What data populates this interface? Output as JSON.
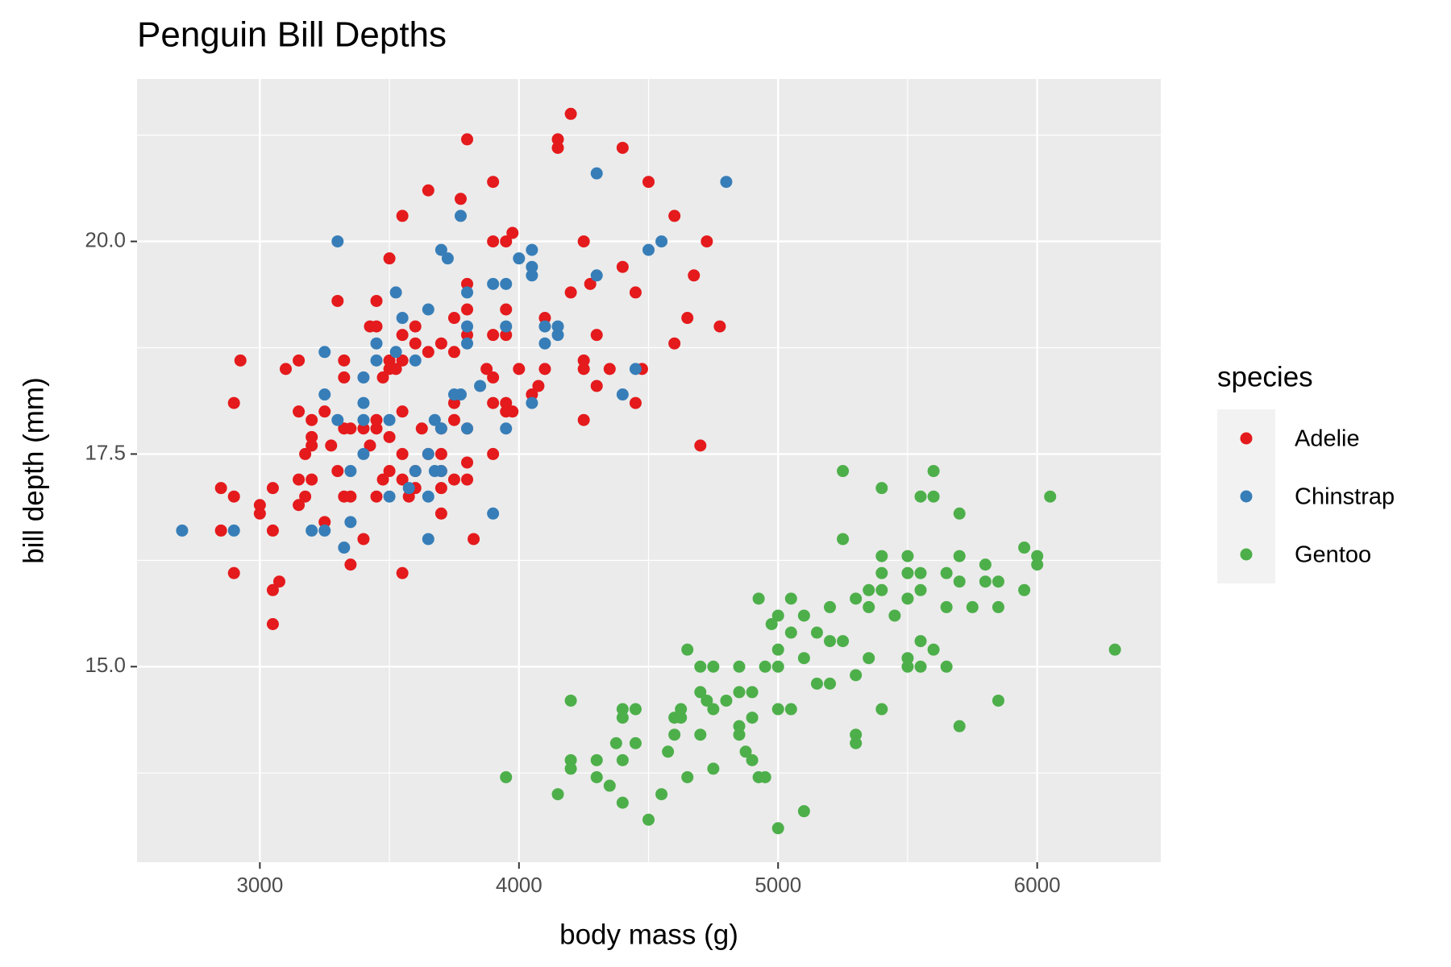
{
  "chart_data": {
    "type": "scatter",
    "title": "Penguin Bill Depths",
    "x_label": "body mass (g)",
    "y_label": "bill depth (mm)",
    "legend_title": "species",
    "legend_position": "right",
    "grid": true,
    "xlim": [
      2526,
      6477
    ],
    "ylim": [
      12.7,
      21.91
    ],
    "xticks": [
      3000,
      4000,
      5000,
      6000
    ],
    "yticks": [
      {
        "value": 15,
        "label": "15.0"
      },
      17.5,
      {
        "value": 20,
        "label": "20.0"
      }
    ],
    "x_minor_breaks": [
      3500,
      4500,
      5500
    ],
    "y_minor_breaks": [
      13.75,
      16.25,
      18.75,
      21.25
    ],
    "series": [
      {
        "name": "Adelie",
        "color": "#E41A1C",
        "x": [
          4200,
          4150,
          4150,
          3800,
          4400,
          3900,
          4500,
          3650,
          3775,
          3550,
          4600,
          3975,
          3900,
          3950,
          4250,
          4725,
          3500,
          4400,
          4675,
          4275,
          4200,
          4450,
          3800,
          3300,
          3450,
          3800,
          3950,
          4650,
          4100,
          3750,
          4775,
          3425,
          3450,
          3600,
          3950,
          3900,
          3550,
          4300,
          3800,
          4600,
          3600,
          3750,
          3650,
          3700,
          2925,
          3150,
          3325,
          4250,
          3500,
          3525,
          3550,
          3500,
          3100,
          3875,
          4000,
          4100,
          4250,
          4350,
          4475,
          3900,
          3325,
          3475,
          4075,
          4300,
          4050,
          2900,
          3750,
          3900,
          4450,
          3950,
          3975,
          3950,
          3150,
          3250,
          3550,
          4250,
          3200,
          3325,
          3350,
          3400,
          3450,
          3450,
          3500,
          3625,
          3700,
          3750,
          3800,
          3200,
          3200,
          3175,
          3275,
          3425,
          4700,
          3550,
          3650,
          3700,
          3900,
          3800,
          3300,
          3500,
          3600,
          3700,
          3150,
          3200,
          3550,
          3750,
          3800,
          3475,
          2850,
          3050,
          3600,
          2900,
          3175,
          3325,
          3350,
          3450,
          3575,
          3700,
          3000,
          3150,
          3000,
          3700,
          3250,
          2850,
          3050,
          3400,
          3825,
          3350,
          2900,
          3550,
          3075,
          3050,
          3050
        ],
        "y": [
          21.5,
          21.2,
          21.1,
          21.2,
          21.1,
          20.7,
          20.7,
          20.6,
          20.5,
          20.3,
          20.3,
          20.1,
          20.0,
          20.0,
          20.0,
          20.0,
          19.8,
          19.7,
          19.6,
          19.5,
          19.4,
          19.4,
          19.5,
          19.3,
          19.3,
          19.2,
          19.2,
          19.1,
          19.1,
          19.1,
          19.0,
          19.0,
          19.0,
          19.0,
          18.9,
          18.9,
          18.9,
          18.9,
          18.9,
          18.8,
          18.8,
          18.7,
          18.7,
          18.8,
          18.6,
          18.6,
          18.6,
          18.6,
          18.6,
          18.5,
          18.6,
          18.5,
          18.5,
          18.5,
          18.5,
          18.5,
          18.5,
          18.5,
          18.5,
          18.4,
          18.4,
          18.4,
          18.3,
          18.3,
          18.2,
          18.1,
          18.1,
          18.1,
          18.1,
          18.0,
          18.0,
          18.1,
          18.0,
          18.0,
          18.0,
          17.9,
          17.9,
          17.8,
          17.8,
          17.8,
          17.9,
          17.8,
          17.7,
          17.8,
          17.8,
          17.9,
          17.8,
          17.7,
          17.6,
          17.5,
          17.6,
          17.6,
          17.6,
          17.5,
          17.5,
          17.5,
          17.5,
          17.4,
          17.3,
          17.3,
          17.3,
          17.3,
          17.2,
          17.2,
          17.2,
          17.2,
          17.2,
          17.2,
          17.1,
          17.1,
          17.1,
          17.0,
          17.0,
          17.0,
          17.0,
          17.0,
          17.0,
          17.1,
          16.9,
          16.9,
          16.8,
          16.8,
          16.7,
          16.6,
          16.6,
          16.5,
          16.5,
          16.2,
          16.1,
          16.1,
          16.0,
          15.9,
          15.5
        ]
      },
      {
        "name": "Chinstrap",
        "color": "#377EB8",
        "x": [
          2700,
          2900,
          4300,
          4800,
          3775,
          3300,
          4550,
          4500,
          3700,
          3725,
          4050,
          4000,
          4050,
          4050,
          4300,
          3900,
          3950,
          3800,
          3525,
          3650,
          3550,
          3950,
          3800,
          4100,
          4150,
          4150,
          3800,
          3450,
          4100,
          3250,
          3525,
          3600,
          3450,
          4450,
          3400,
          3850,
          3250,
          3750,
          3775,
          4400,
          3400,
          4050,
          3300,
          3400,
          3500,
          3675,
          3700,
          3800,
          3950,
          3400,
          3650,
          3350,
          3600,
          3675,
          3700,
          3575,
          3500,
          3650,
          3900,
          3350,
          3200,
          3250,
          3650,
          3325
        ],
        "y": [
          16.6,
          16.6,
          20.8,
          20.7,
          20.3,
          20.0,
          20.0,
          19.9,
          19.9,
          19.8,
          19.9,
          19.8,
          19.7,
          19.6,
          19.6,
          19.5,
          19.5,
          19.4,
          19.4,
          19.2,
          19.1,
          19.0,
          19.0,
          19.0,
          19.0,
          18.9,
          18.8,
          18.8,
          18.8,
          18.7,
          18.7,
          18.6,
          18.6,
          18.5,
          18.4,
          18.3,
          18.2,
          18.2,
          18.2,
          18.2,
          18.1,
          18.1,
          17.9,
          17.9,
          17.9,
          17.9,
          17.8,
          17.8,
          17.8,
          17.5,
          17.5,
          17.3,
          17.3,
          17.3,
          17.3,
          17.1,
          17.0,
          17.0,
          16.8,
          16.7,
          16.6,
          16.6,
          16.5,
          16.4
        ]
      },
      {
        "name": "Gentoo",
        "color": "#4DAF4A",
        "x": [
          5250,
          5600,
          5400,
          5550,
          5600,
          6050,
          5700,
          5250,
          5950,
          5400,
          5500,
          5700,
          6000,
          6000,
          5800,
          5400,
          5500,
          5550,
          5650,
          5700,
          5800,
          5850,
          5350,
          5400,
          5550,
          5950,
          4925,
          5050,
          5300,
          5500,
          5000,
          4975,
          5200,
          5350,
          5650,
          5750,
          5850,
          5100,
          5450,
          5050,
          5150,
          5200,
          5250,
          5550,
          4650,
          5000,
          5600,
          6300,
          5100,
          5350,
          5500,
          4700,
          4750,
          4850,
          4950,
          5000,
          5500,
          5550,
          5650,
          5300,
          5150,
          5200,
          4700,
          4850,
          4900,
          4200,
          4725,
          5850,
          4400,
          4450,
          4625,
          4750,
          4800,
          5000,
          5050,
          5400,
          4600,
          4900,
          4400,
          4625,
          5700,
          4850,
          4600,
          4700,
          4850,
          5300,
          4375,
          4450,
          5300,
          4575,
          4875,
          4200,
          4300,
          4400,
          4900,
          4200,
          4750,
          3950,
          4300,
          4650,
          4925,
          4950,
          4350,
          4150,
          4550,
          4400,
          5100,
          4500,
          5000
        ],
        "y": [
          17.3,
          17.3,
          17.1,
          17.0,
          17.0,
          17.0,
          16.8,
          16.5,
          16.4,
          16.3,
          16.3,
          16.3,
          16.3,
          16.2,
          16.2,
          16.1,
          16.1,
          16.1,
          16.1,
          16.0,
          16.0,
          16.0,
          15.9,
          15.9,
          15.9,
          15.9,
          15.8,
          15.8,
          15.8,
          15.8,
          15.6,
          15.5,
          15.7,
          15.7,
          15.7,
          15.7,
          15.7,
          15.6,
          15.6,
          15.4,
          15.4,
          15.3,
          15.3,
          15.3,
          15.2,
          15.2,
          15.2,
          15.2,
          15.1,
          15.1,
          15.1,
          15.0,
          15.0,
          15.0,
          15.0,
          15.0,
          15.0,
          15.0,
          15.0,
          14.9,
          14.8,
          14.8,
          14.7,
          14.7,
          14.7,
          14.6,
          14.6,
          14.6,
          14.5,
          14.5,
          14.5,
          14.5,
          14.6,
          14.5,
          14.5,
          14.5,
          14.4,
          14.4,
          14.4,
          14.4,
          14.3,
          14.3,
          14.2,
          14.2,
          14.2,
          14.2,
          14.1,
          14.1,
          14.1,
          14.0,
          14.0,
          13.9,
          13.9,
          13.9,
          13.9,
          13.8,
          13.8,
          13.7,
          13.7,
          13.7,
          13.7,
          13.7,
          13.6,
          13.5,
          13.5,
          13.4,
          13.3,
          13.2,
          13.1
        ]
      }
    ]
  }
}
